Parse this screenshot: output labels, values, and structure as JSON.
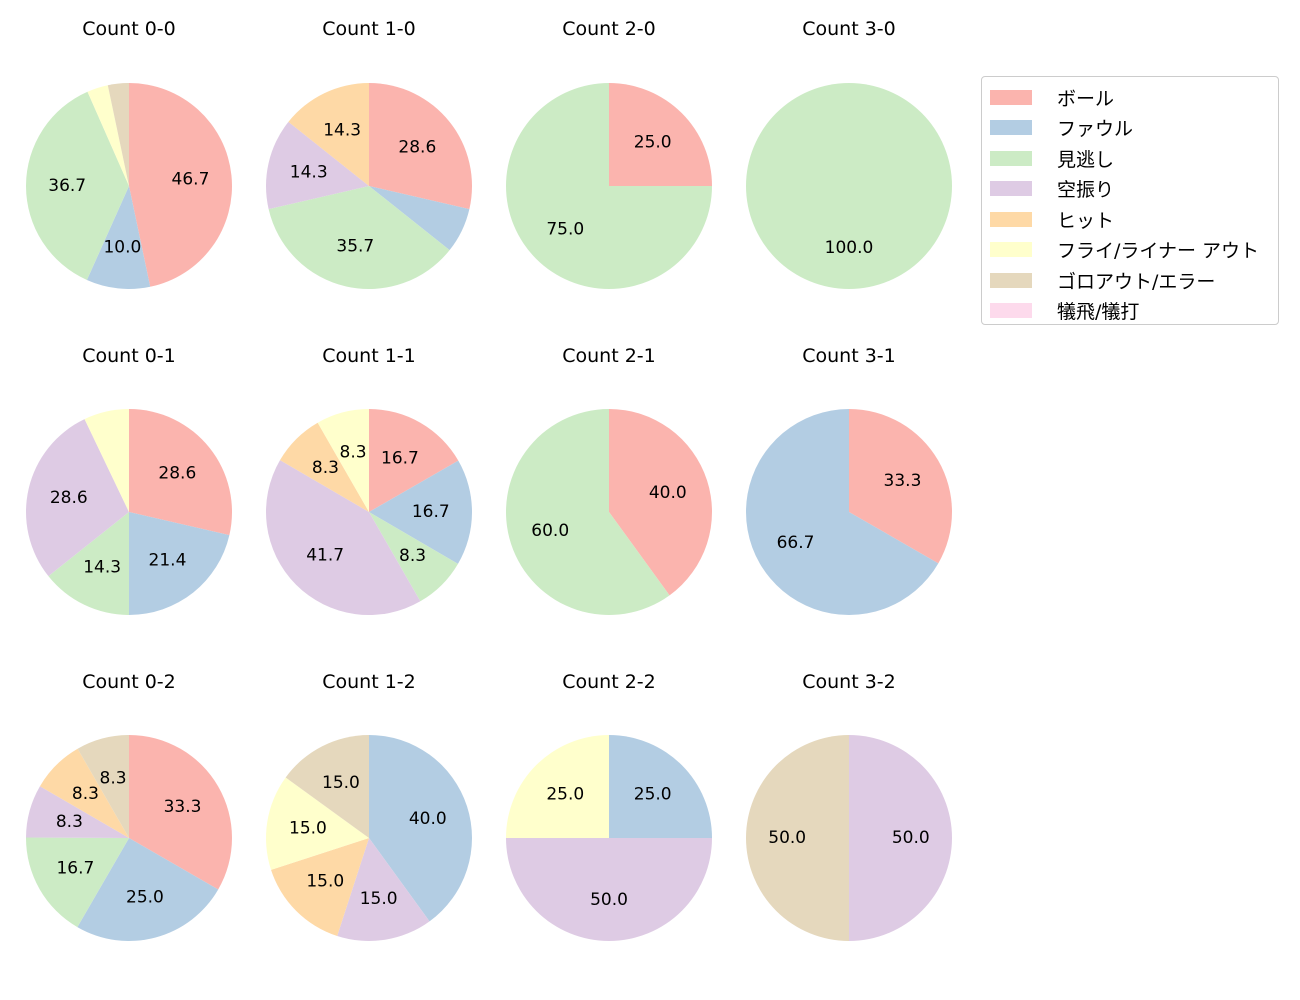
{
  "chart_data": {
    "type": "pie",
    "categories": [
      "ボール",
      "ファウル",
      "見逃し",
      "空振り",
      "ヒット",
      "フライ/ライナー アウト",
      "ゴロアウト/エラー",
      "犠飛/犠打"
    ],
    "colors": [
      "#fbb4ae",
      "#b3cde3",
      "#ccebc5",
      "#decbe4",
      "#fed9a6",
      "#ffffcc",
      "#e5d8bd",
      "#fddaec"
    ],
    "legend_placement": "upper-right",
    "charts": [
      {
        "title": "Count 0-0",
        "values": [
          46.7,
          10.0,
          36.7,
          0,
          0,
          3.3,
          3.3,
          0
        ]
      },
      {
        "title": "Count 1-0",
        "values": [
          28.6,
          7.1,
          35.7,
          14.3,
          14.3,
          0,
          0,
          0
        ]
      },
      {
        "title": "Count 2-0",
        "values": [
          25.0,
          0,
          75.0,
          0,
          0,
          0,
          0,
          0
        ]
      },
      {
        "title": "Count 3-0",
        "values": [
          0,
          0,
          100.0,
          0,
          0,
          0,
          0,
          0
        ]
      },
      {
        "title": "Count 0-1",
        "values": [
          28.6,
          21.4,
          14.3,
          28.6,
          0,
          7.1,
          0,
          0
        ]
      },
      {
        "title": "Count 1-1",
        "values": [
          16.7,
          16.7,
          8.3,
          41.7,
          8.3,
          8.3,
          0,
          0
        ]
      },
      {
        "title": "Count 2-1",
        "values": [
          40.0,
          0,
          60.0,
          0,
          0,
          0,
          0,
          0
        ]
      },
      {
        "title": "Count 3-1",
        "values": [
          33.3,
          66.7,
          0,
          0,
          0,
          0,
          0,
          0
        ]
      },
      {
        "title": "Count 0-2",
        "values": [
          33.3,
          25.0,
          16.7,
          8.3,
          8.3,
          0,
          8.3,
          0
        ]
      },
      {
        "title": "Count 1-2",
        "values": [
          0,
          40.0,
          0,
          15.0,
          15.0,
          15.0,
          15.0,
          0
        ]
      },
      {
        "title": "Count 2-2",
        "values": [
          0,
          25.0,
          0,
          50.0,
          0,
          25.0,
          0,
          0
        ]
      },
      {
        "title": "Count 3-2",
        "values": [
          0,
          0,
          0,
          50.0,
          0,
          0,
          50.0,
          0
        ]
      }
    ]
  }
}
